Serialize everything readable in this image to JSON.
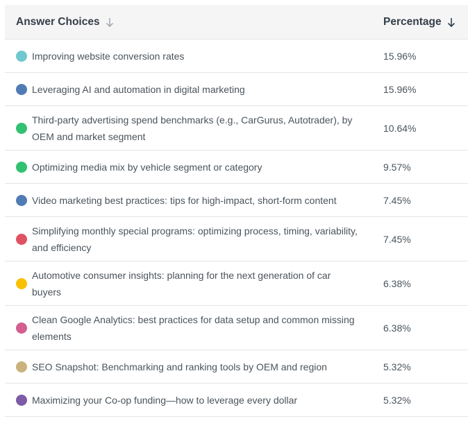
{
  "table": {
    "header": {
      "answer_label": "Answer Choices",
      "percentage_label": "Percentage"
    },
    "rows": [
      {
        "label": "Improving website conversion rates",
        "value": "15.96%",
        "color": "#6fc8ce"
      },
      {
        "label": "Leveraging AI and automation in digital marketing",
        "value": "15.96%",
        "color": "#507cb6"
      },
      {
        "label": "Third-party advertising spend benchmarks (e.g., CarGurus, Autotrader), by OEM and market segment",
        "value": "10.64%",
        "color": "#32c171"
      },
      {
        "label": "Optimizing media mix by vehicle segment or category",
        "value": "9.57%",
        "color": "#32c171"
      },
      {
        "label": "Video marketing best practices: tips for high-impact, short-form content",
        "value": "7.45%",
        "color": "#507cb6"
      },
      {
        "label": "Simplifying monthly special programs: optimizing process, timing, variability, and efficiency",
        "value": "7.45%",
        "color": "#e05263"
      },
      {
        "label": "Automotive consumer insights: planning for the next generation of car buyers",
        "value": "6.38%",
        "color": "#f9c000"
      },
      {
        "label": "Clean Google Analytics: best practices for data setup and common missing elements",
        "value": "6.38%",
        "color": "#d25f90"
      },
      {
        "label": "SEO Snapshot: Benchmarking and ranking tools by OEM and region",
        "value": "5.32%",
        "color": "#c9b27c"
      },
      {
        "label": "Maximizing your Co-op funding—how to leverage every dollar",
        "value": "5.32%",
        "color": "#7d5ba6"
      }
    ]
  }
}
